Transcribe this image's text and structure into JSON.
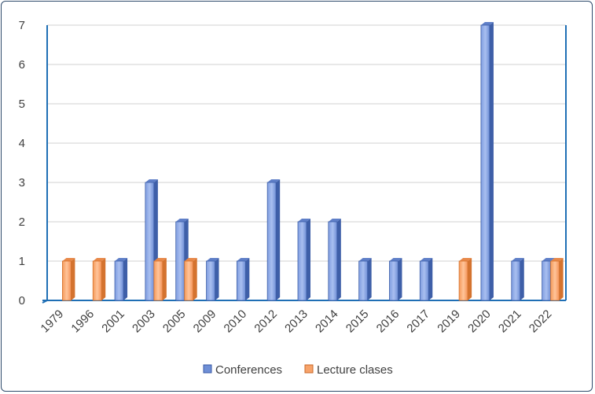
{
  "chart_data": {
    "type": "bar",
    "style": "3d-clustered-column",
    "categories": [
      "1979",
      "1996",
      "2001",
      "2003",
      "2005",
      "2009",
      "2010",
      "2012",
      "2013",
      "2014",
      "2015",
      "2016",
      "2017",
      "2019",
      "2020",
      "2021",
      "2022"
    ],
    "series": [
      {
        "name": "Conferences",
        "color": "#6f8fd6",
        "values": [
          0,
          0,
          1,
          3,
          2,
          1,
          1,
          3,
          2,
          2,
          1,
          1,
          1,
          0,
          7,
          1,
          1
        ]
      },
      {
        "name": "Lecture clases",
        "color": "#f7a36a",
        "values": [
          1,
          1,
          0,
          1,
          1,
          0,
          0,
          0,
          0,
          0,
          0,
          0,
          0,
          1,
          0,
          0,
          1
        ]
      }
    ],
    "ylim": [
      0,
      7
    ],
    "yticks": [
      "0",
      "1",
      "2",
      "3",
      "4",
      "5",
      "6",
      "7"
    ],
    "grid": true,
    "legend_position": "bottom",
    "axis_color": "#1f6fb5",
    "grid_color": "#d9d9d9"
  }
}
